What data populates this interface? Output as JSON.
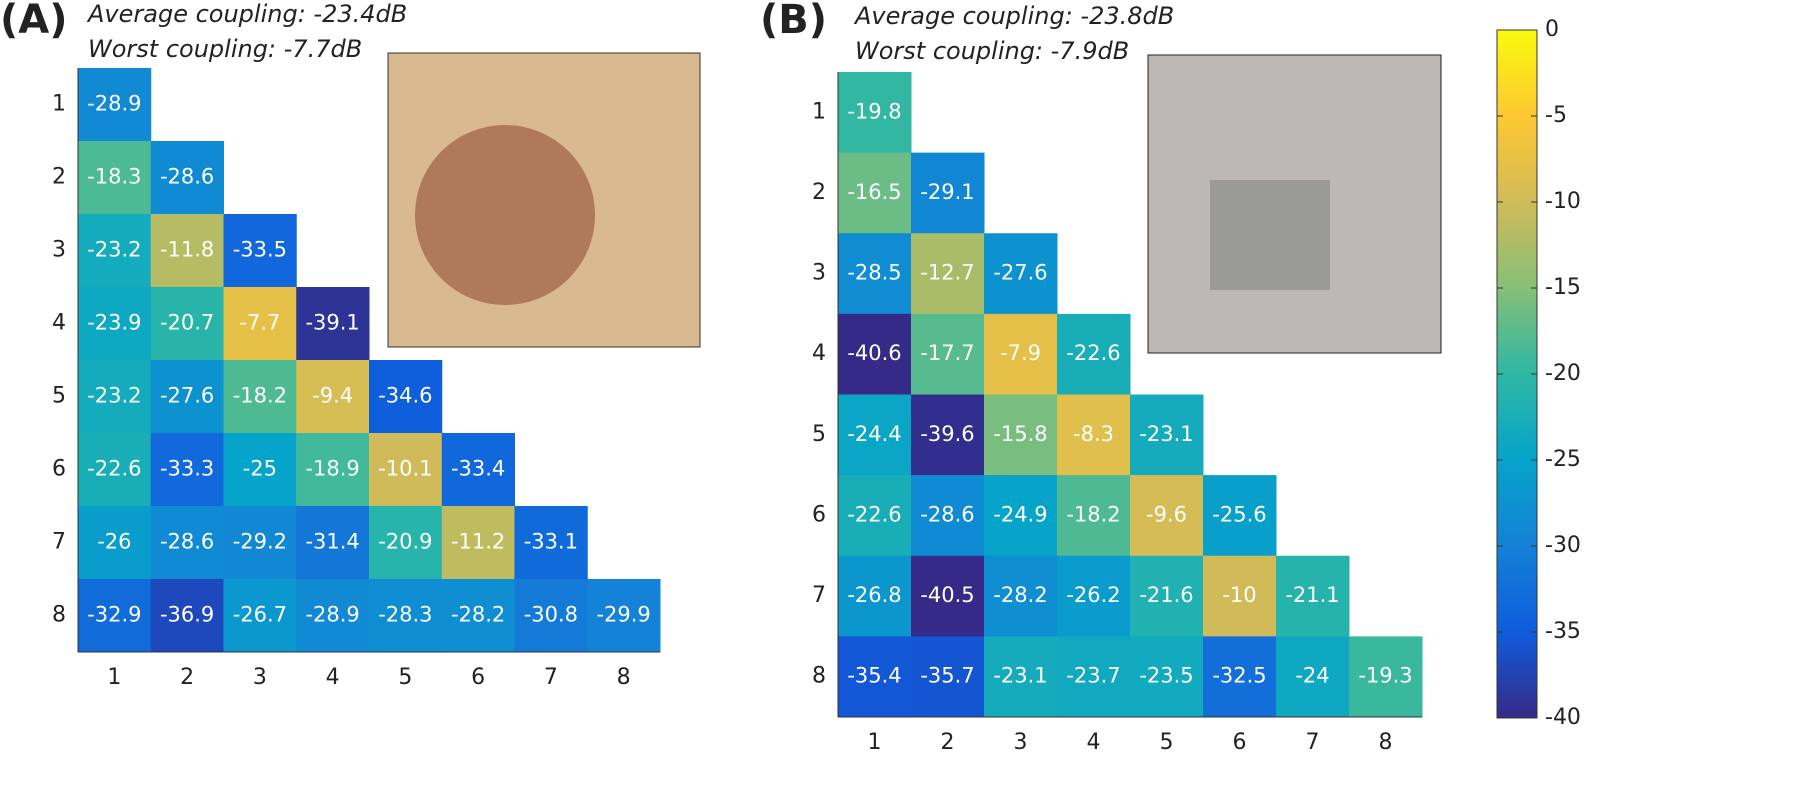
{
  "chart_data": [
    {
      "type": "heatmap",
      "panel_label": "(A)",
      "annotations": [
        "Average coupling: -23.4dB",
        "Worst coupling: -7.7dB"
      ],
      "x_categories": [
        "1",
        "2",
        "3",
        "4",
        "5",
        "6",
        "7",
        "8"
      ],
      "y_categories": [
        "1",
        "2",
        "3",
        "4",
        "5",
        "6",
        "7",
        "8"
      ],
      "matrix": [
        [
          -28.9,
          null,
          null,
          null,
          null,
          null,
          null,
          null
        ],
        [
          -18.3,
          -28.6,
          null,
          null,
          null,
          null,
          null,
          null
        ],
        [
          -23.2,
          -11.8,
          -33.5,
          null,
          null,
          null,
          null,
          null
        ],
        [
          -23.9,
          -20.7,
          -7.7,
          -39.1,
          null,
          null,
          null,
          null
        ],
        [
          -23.2,
          -27.6,
          -18.2,
          -9.4,
          -34.6,
          null,
          null,
          null
        ],
        [
          -22.6,
          -33.3,
          -25,
          -18.9,
          -10.1,
          -33.4,
          null,
          null
        ],
        [
          -26,
          -28.6,
          -29.2,
          -31.4,
          -20.9,
          -11.2,
          -33.1,
          null
        ],
        [
          -32.9,
          -36.9,
          -26.7,
          -28.9,
          -28.3,
          -28.2,
          -30.8,
          -29.9
        ]
      ],
      "zlim": [
        -40,
        0
      ],
      "colormap": "parula",
      "colorbar": false
    },
    {
      "type": "heatmap",
      "panel_label": "(B)",
      "annotations": [
        "Average coupling: -23.8dB",
        "Worst coupling: -7.9dB"
      ],
      "x_categories": [
        "1",
        "2",
        "3",
        "4",
        "5",
        "6",
        "7",
        "8"
      ],
      "y_categories": [
        "1",
        "2",
        "3",
        "4",
        "5",
        "6",
        "7",
        "8"
      ],
      "matrix": [
        [
          -19.8,
          null,
          null,
          null,
          null,
          null,
          null,
          null
        ],
        [
          -16.5,
          -29.1,
          null,
          null,
          null,
          null,
          null,
          null
        ],
        [
          -28.5,
          -12.7,
          -27.6,
          null,
          null,
          null,
          null,
          null
        ],
        [
          -40.6,
          -17.7,
          -7.9,
          -22.6,
          null,
          null,
          null,
          null
        ],
        [
          -24.4,
          -39.6,
          -15.8,
          -8.3,
          -23.1,
          null,
          null,
          null
        ],
        [
          -22.6,
          -28.6,
          -24.9,
          -18.2,
          -9.6,
          -25.6,
          null,
          null
        ],
        [
          -26.8,
          -40.5,
          -28.2,
          -26.2,
          -21.6,
          -10,
          -21.1,
          null
        ],
        [
          -35.4,
          -35.7,
          -23.1,
          -23.7,
          -23.5,
          -32.5,
          -24,
          -19.3
        ]
      ],
      "zlim": [
        -40,
        0
      ],
      "zticks": [
        -40,
        -35,
        -30,
        -25,
        -20,
        -15,
        -10,
        -5,
        0
      ],
      "colormap": "parula",
      "colorbar": true
    }
  ]
}
